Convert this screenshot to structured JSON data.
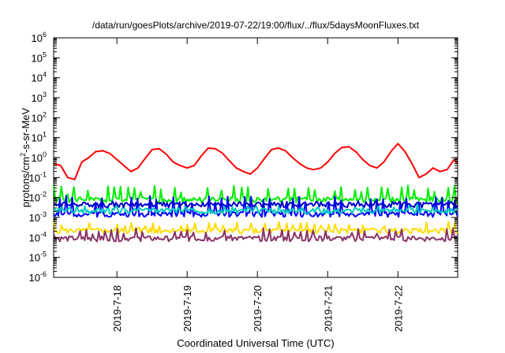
{
  "chart_data": {
    "type": "line",
    "title": "/data/run/goesPlots/archive/2019-07-22/19:00/flux/../flux/5daysMoonFluxes.txt",
    "xlabel": "Coordinated Universal Time (UTC)",
    "ylabel": "protons/cm2-s-sr-MeV",
    "yscale": "log",
    "ylim_exp": [
      -6,
      6
    ],
    "xlim_days": [
      17.1,
      22.85
    ],
    "x_ticks": [
      {
        "day": 18,
        "label": "2019-7-18"
      },
      {
        "day": 19,
        "label": "2019-7-19"
      },
      {
        "day": 20,
        "label": "2019-7-20"
      },
      {
        "day": 21,
        "label": "2019-7-21"
      },
      {
        "day": 22,
        "label": "2019-7-22"
      }
    ],
    "y_tick_exponents": [
      -6,
      -5,
      -4,
      -3,
      -2,
      -1,
      0,
      1,
      2,
      3,
      4,
      5,
      6
    ],
    "grid": false,
    "legend": "none",
    "series": [
      {
        "color": "#ff0000",
        "width": 2,
        "x": [
          17.1,
          17.2,
          17.3,
          17.4,
          17.5,
          17.6,
          17.7,
          17.8,
          17.9,
          18.0,
          18.1,
          18.2,
          18.3,
          18.4,
          18.5,
          18.6,
          18.7,
          18.8,
          18.9,
          19.0,
          19.1,
          19.2,
          19.3,
          19.4,
          19.5,
          19.6,
          19.7,
          19.8,
          19.9,
          20.0,
          20.1,
          20.2,
          20.3,
          20.4,
          20.5,
          20.6,
          20.7,
          20.8,
          20.9,
          21.0,
          21.1,
          21.2,
          21.3,
          21.4,
          21.5,
          21.6,
          21.7,
          21.8,
          21.9,
          22.0,
          22.1,
          22.2,
          22.3,
          22.4,
          22.5,
          22.6,
          22.7,
          22.8,
          22.85
        ],
        "y": [
          0.5,
          0.4,
          0.1,
          0.08,
          0.6,
          1.0,
          2.0,
          2.2,
          1.6,
          0.8,
          0.4,
          0.2,
          0.3,
          0.9,
          2.5,
          2.8,
          1.5,
          0.6,
          0.4,
          0.3,
          0.4,
          1.2,
          3.0,
          2.8,
          1.7,
          0.7,
          0.3,
          0.2,
          0.15,
          0.3,
          0.9,
          2.5,
          3.0,
          2.2,
          1.0,
          0.5,
          0.3,
          0.25,
          0.3,
          0.6,
          1.6,
          3.2,
          3.5,
          2.0,
          0.8,
          0.4,
          0.3,
          0.6,
          2.0,
          5.0,
          2.0,
          0.5,
          0.1,
          0.15,
          0.3,
          0.2,
          0.25,
          0.8,
          0.5
        ]
      },
      {
        "color": "#00ee00",
        "width": 2,
        "base": 0.008,
        "amp": 0.025,
        "period": 0.095,
        "seed": 1
      },
      {
        "color": "#0000ff",
        "width": 2,
        "base": 0.0015,
        "amp": 0.008,
        "period": 0.085,
        "seed": 2
      },
      {
        "color": "#00ccbb",
        "width": 2,
        "base": 0.0022,
        "amp": 0.0015,
        "period": 0.11,
        "seed": 3
      },
      {
        "color": "#0000cc",
        "width": 2,
        "base": 0.0045,
        "amp": 0.001,
        "period": 0.12,
        "seed": 4
      },
      {
        "color": "#ffdd00",
        "width": 2,
        "base": 0.00022,
        "amp": 0.0003,
        "period": 0.1,
        "seed": 5
      },
      {
        "color": "#883366",
        "width": 2,
        "base": 9e-05,
        "amp": 0.00015,
        "period": 0.09,
        "seed": 6
      }
    ]
  }
}
